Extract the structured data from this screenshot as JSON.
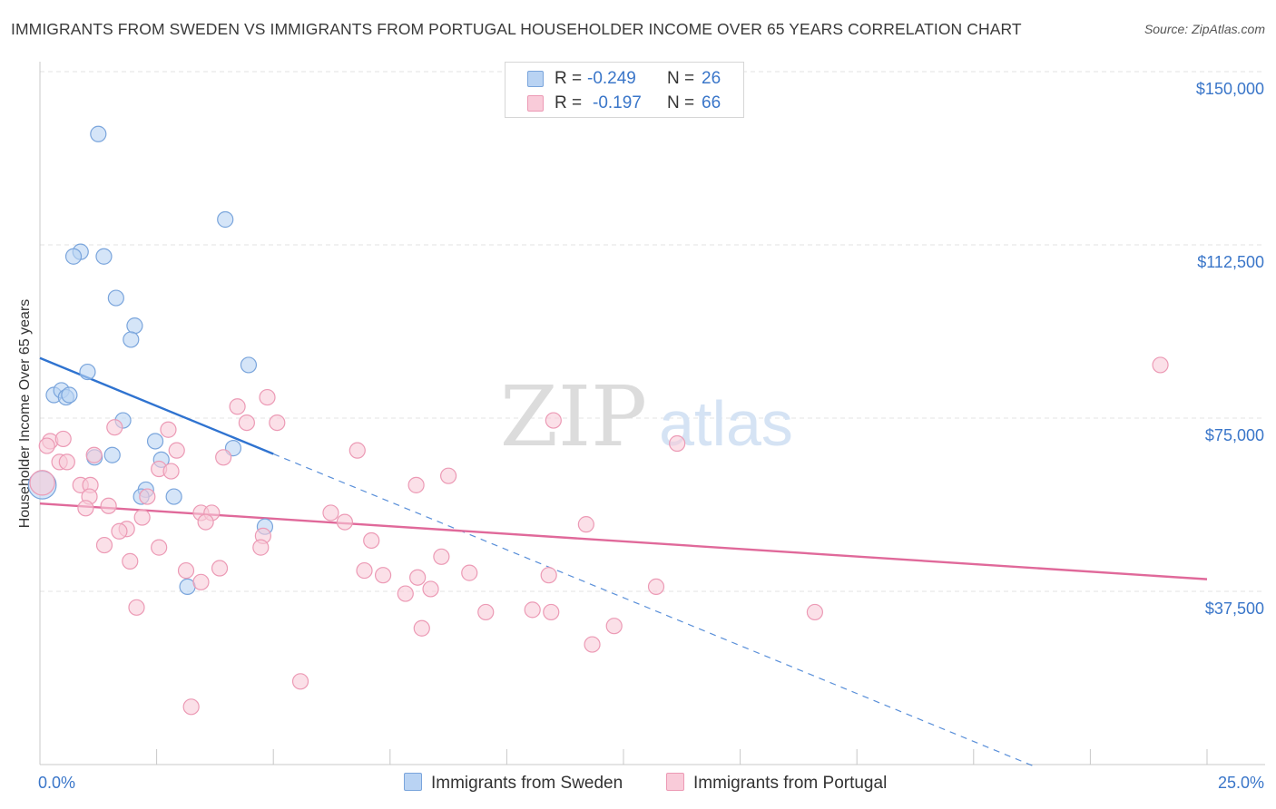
{
  "title": "IMMIGRANTS FROM SWEDEN VS IMMIGRANTS FROM PORTUGAL HOUSEHOLDER INCOME OVER 65 YEARS CORRELATION CHART",
  "source": "Source: ZipAtlas.com",
  "watermark": {
    "zip": "ZIP",
    "atlas": "atlas"
  },
  "colors": {
    "sweden_fill": "#b9d3f3",
    "sweden_stroke": "#7aa5dc",
    "sweden_line": "#2f73d0",
    "portugal_fill": "#f9cbd9",
    "portugal_stroke": "#ec9ab5",
    "portugal_line": "#e0699a",
    "axis_text": "#3a76c9",
    "grid": "#e3e3e3"
  },
  "legend": {
    "rows": [
      {
        "r_label": "R = ",
        "r_value": "-0.249",
        "n_label": "N = ",
        "n_value": "26"
      },
      {
        "r_label": "R = ",
        "r_value": "-0.197",
        "n_label": "N = ",
        "n_value": "66"
      }
    ]
  },
  "chart_data": {
    "type": "scatter",
    "title": "IMMIGRANTS FROM SWEDEN VS IMMIGRANTS FROM PORTUGAL HOUSEHOLDER INCOME OVER 65 YEARS CORRELATION CHART",
    "xlabel": "",
    "ylabel": "Householder Income Over 65 years",
    "xlim": [
      0,
      25
    ],
    "ylim": [
      0,
      155000
    ],
    "x_tick_labels": [
      "0.0%",
      "25.0%"
    ],
    "y_ticks": [
      37500,
      75000,
      112500,
      150000
    ],
    "y_tick_labels": [
      "$37,500",
      "$75,000",
      "$112,500",
      "$150,000"
    ],
    "legend_position": "top-center",
    "series": [
      {
        "name": "Immigrants from Sweden",
        "r": -0.249,
        "n": 26,
        "trend": {
          "x_start": 0,
          "x_solid_end": 5.0,
          "x_dash_end": 21.3,
          "y_intercept": 88000,
          "slope_per_pct": -4150
        },
        "points": [
          [
            0.05,
            60500,
            1.8
          ],
          [
            1.25,
            136500,
            1
          ],
          [
            3.97,
            118000,
            1
          ],
          [
            0.87,
            111000,
            1
          ],
          [
            0.72,
            110000,
            1
          ],
          [
            1.37,
            110000,
            1
          ],
          [
            1.63,
            101000,
            1
          ],
          [
            2.03,
            95000,
            1
          ],
          [
            1.95,
            92000,
            1
          ],
          [
            4.47,
            86500,
            1
          ],
          [
            1.02,
            85000,
            1
          ],
          [
            0.3,
            80000,
            1
          ],
          [
            0.46,
            81000,
            1
          ],
          [
            0.56,
            79500,
            1
          ],
          [
            0.63,
            80000,
            1
          ],
          [
            1.78,
            74500,
            1
          ],
          [
            2.47,
            70000,
            1
          ],
          [
            1.55,
            67000,
            1
          ],
          [
            1.17,
            66500,
            1
          ],
          [
            2.6,
            66000,
            1
          ],
          [
            4.14,
            68500,
            1
          ],
          [
            2.27,
            59500,
            1
          ],
          [
            2.17,
            58000,
            1
          ],
          [
            2.87,
            58000,
            1
          ],
          [
            4.82,
            51500,
            1
          ],
          [
            3.16,
            38500,
            1
          ]
        ]
      },
      {
        "name": "Immigrants from Portugal",
        "r": -0.197,
        "n": 66,
        "trend": {
          "x_start": 0,
          "x_end": 25,
          "y_intercept": 56500,
          "slope_per_pct": -655
        },
        "points": [
          [
            0.05,
            61000,
            1.6
          ],
          [
            24.0,
            86500,
            1
          ],
          [
            4.87,
            79500,
            1
          ],
          [
            4.23,
            77500,
            1
          ],
          [
            5.08,
            74000,
            1
          ],
          [
            4.43,
            74000,
            1
          ],
          [
            11.0,
            74500,
            1
          ],
          [
            2.75,
            72500,
            1
          ],
          [
            1.6,
            73000,
            1
          ],
          [
            0.22,
            70000,
            1
          ],
          [
            0.5,
            70500,
            1
          ],
          [
            13.65,
            69500,
            1
          ],
          [
            2.93,
            68000,
            1
          ],
          [
            6.8,
            68000,
            1
          ],
          [
            3.93,
            66500,
            1
          ],
          [
            1.16,
            67000,
            1
          ],
          [
            0.42,
            65500,
            1
          ],
          [
            0.58,
            65500,
            1
          ],
          [
            2.55,
            64000,
            1
          ],
          [
            2.81,
            63500,
            1
          ],
          [
            8.75,
            62500,
            1
          ],
          [
            8.06,
            60500,
            1
          ],
          [
            0.87,
            60500,
            1
          ],
          [
            1.08,
            60500,
            1
          ],
          [
            2.3,
            58000,
            1
          ],
          [
            1.06,
            58000,
            1
          ],
          [
            1.47,
            56000,
            1
          ],
          [
            0.98,
            55500,
            1
          ],
          [
            3.45,
            54500,
            1
          ],
          [
            3.68,
            54500,
            1
          ],
          [
            6.23,
            54500,
            1
          ],
          [
            2.19,
            53500,
            1
          ],
          [
            3.55,
            52500,
            1
          ],
          [
            6.53,
            52500,
            1
          ],
          [
            11.7,
            52000,
            1
          ],
          [
            1.86,
            51000,
            1
          ],
          [
            1.7,
            50500,
            1
          ],
          [
            4.78,
            49500,
            1
          ],
          [
            7.1,
            48500,
            1
          ],
          [
            1.38,
            47500,
            1
          ],
          [
            2.55,
            47000,
            1
          ],
          [
            4.73,
            47000,
            1
          ],
          [
            8.6,
            45000,
            1
          ],
          [
            1.93,
            44000,
            1
          ],
          [
            3.85,
            42500,
            1
          ],
          [
            6.95,
            42000,
            1
          ],
          [
            3.13,
            42000,
            1
          ],
          [
            7.35,
            41000,
            1
          ],
          [
            9.2,
            41500,
            1
          ],
          [
            10.9,
            41000,
            1
          ],
          [
            8.09,
            40500,
            1
          ],
          [
            3.45,
            39500,
            1
          ],
          [
            13.2,
            38500,
            1
          ],
          [
            8.37,
            38000,
            1
          ],
          [
            7.83,
            37000,
            1
          ],
          [
            2.07,
            34000,
            1
          ],
          [
            10.55,
            33500,
            1
          ],
          [
            9.55,
            33000,
            1
          ],
          [
            10.95,
            33000,
            1
          ],
          [
            16.6,
            33000,
            1
          ],
          [
            8.18,
            29500,
            1
          ],
          [
            12.3,
            30000,
            1
          ],
          [
            11.83,
            26000,
            1
          ],
          [
            5.58,
            18000,
            1
          ],
          [
            3.24,
            12500,
            1
          ],
          [
            0.15,
            69000,
            1
          ]
        ]
      }
    ]
  }
}
